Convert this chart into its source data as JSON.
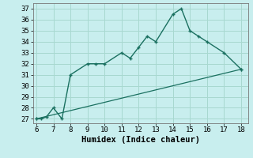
{
  "main_x": [
    6,
    6.3,
    6.6,
    7,
    7.5,
    8,
    9,
    9.5,
    10,
    11,
    11.5,
    12,
    12.5,
    13,
    14,
    14.5,
    15,
    15.5,
    16,
    17,
    18
  ],
  "main_y": [
    27,
    27,
    27.2,
    28,
    27,
    31,
    32,
    32,
    32,
    33,
    32.5,
    33.5,
    34.5,
    34,
    36.5,
    37,
    35,
    34.5,
    34,
    33,
    31.5
  ],
  "line_x": [
    6,
    18
  ],
  "line_y": [
    27,
    31.5
  ],
  "xlim": [
    5.8,
    18.4
  ],
  "ylim": [
    26.6,
    37.5
  ],
  "xticks": [
    6,
    7,
    8,
    9,
    10,
    11,
    12,
    13,
    14,
    15,
    16,
    17,
    18
  ],
  "yticks": [
    27,
    28,
    29,
    30,
    31,
    32,
    33,
    34,
    35,
    36,
    37
  ],
  "xlabel": "Humidex (Indice chaleur)",
  "line_color": "#1a7060",
  "bg_color": "#c8eeee",
  "grid_color": "#a8d8d0",
  "tick_fontsize": 6.5,
  "label_fontsize": 7.5
}
